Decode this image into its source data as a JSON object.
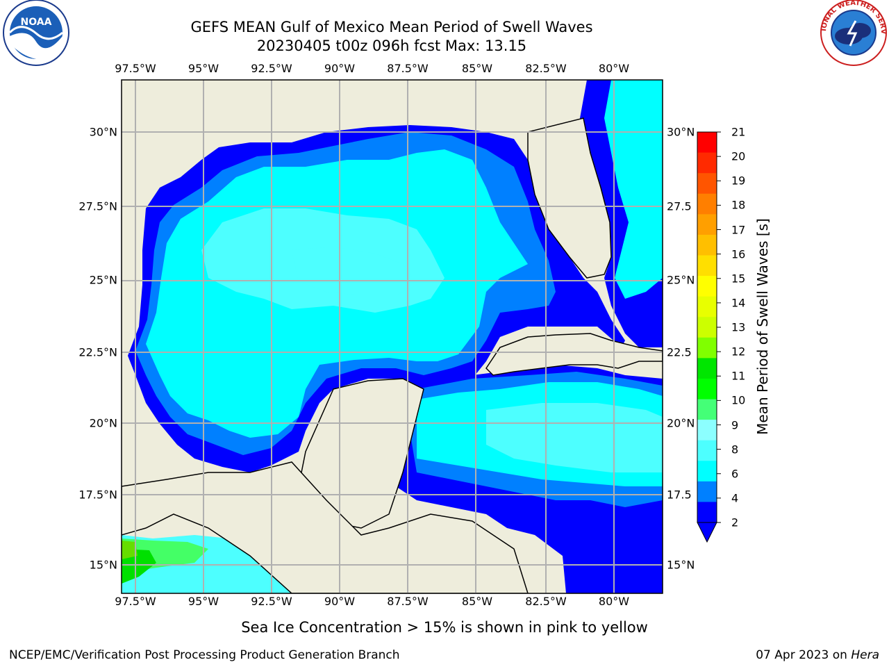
{
  "title": {
    "line1": "GEFS MEAN Gulf of Mexico Mean Period of Swell Waves",
    "line2": "20230405 t00z 096h fcst   Max: 13.15"
  },
  "logos": {
    "left": "noaa-logo",
    "left_text": "NOAA",
    "right": "nws-logo",
    "right_text": "NATIONAL WEATHER SERVICE"
  },
  "map": {
    "lon_labels": [
      "97.5°W",
      "95°W",
      "92.5°W",
      "90°W",
      "87.5°W",
      "85°W",
      "82.5°W",
      "80°W"
    ],
    "lat_labels_left": [
      "30°N",
      "27.5°N",
      "25°N",
      "22.5°N",
      "20°N",
      "17.5°N",
      "15°N"
    ],
    "lat_labels_right": [
      "30°N",
      "27.5",
      "25°N",
      "22.5",
      "20°N",
      "17.5",
      "15°N"
    ],
    "colors": {
      "land": "#eeeddc",
      "grid": "#b0b0b0",
      "level_2_4": "#0000ff",
      "level_4_6": "#0080ff",
      "level_6_8": "#00ffff",
      "level_8_9": "#4dffff",
      "level_9_10": "#8cffff",
      "level_10_11": "#44ff66",
      "level_11_12": "#00e000",
      "level_12_13": "#66dd00"
    }
  },
  "colorbar": {
    "label": "Mean Period of Swell Waves [s]",
    "ticks": [
      "21",
      "20",
      "19",
      "18",
      "17",
      "16",
      "15",
      "14",
      "13",
      "12",
      "11",
      "10",
      "9",
      "8",
      "6",
      "4",
      "2"
    ],
    "colors": [
      "#ff0000",
      "#ff2a00",
      "#ff5500",
      "#ff7f00",
      "#ff9f00",
      "#ffbf00",
      "#ffdf00",
      "#ffff00",
      "#e8ff00",
      "#ccff00",
      "#80ff00",
      "#00e600",
      "#00ff00",
      "#44ff77",
      "#8cffff",
      "#4dffff",
      "#00ffff",
      "#0080ff",
      "#0000ff"
    ]
  },
  "footer": {
    "note": "Sea Ice Concentration > 15% is shown in pink to yellow",
    "left": "NCEP/EMC/Verification Post Processing Product Generation Branch",
    "right_date": "07 Apr 2023 on ",
    "right_host": "Hera"
  }
}
